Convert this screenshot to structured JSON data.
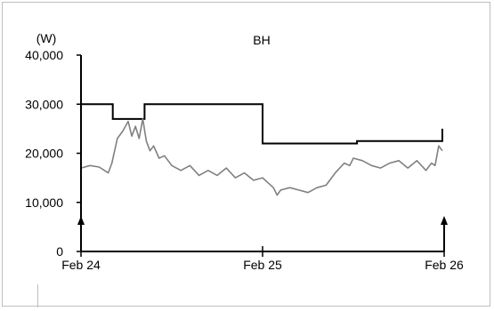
{
  "chart_data": {
    "type": "line",
    "title": "BH",
    "ylabel": "(W)",
    "xlabel": "",
    "ylim": [
      0,
      40000
    ],
    "yticks": [
      0,
      10000,
      20000,
      30000,
      40000
    ],
    "ytick_labels": [
      "0",
      "10,000",
      "20,000",
      "30,000",
      "40,000"
    ],
    "xlim": [
      0,
      2
    ],
    "xtick_labels": [
      "Feb 24",
      "Feb 25",
      "Feb 26"
    ],
    "xtick_positions": [
      0,
      1,
      2
    ],
    "grid": false,
    "legend": "none",
    "colors": {
      "step": "#000000",
      "noisy": "#808080",
      "axes": "#000000",
      "frame": "#bfbfbf"
    },
    "annotations": [
      {
        "type": "arrow-up",
        "x": 0
      },
      {
        "type": "arrow-up",
        "x": 2
      }
    ],
    "series": [
      {
        "style": "step",
        "x": [
          0,
          0.175,
          0.35,
          1.0,
          1.52,
          1.99,
          1.99
        ],
        "values": [
          30000,
          27000,
          30000,
          22000,
          22500,
          23000,
          25000
        ]
      },
      {
        "style": "noisy-line",
        "x": [
          0,
          0.05,
          0.1,
          0.15,
          0.17,
          0.2,
          0.23,
          0.26,
          0.28,
          0.3,
          0.32,
          0.34,
          0.36,
          0.38,
          0.4,
          0.43,
          0.46,
          0.5,
          0.55,
          0.6,
          0.65,
          0.7,
          0.75,
          0.8,
          0.85,
          0.9,
          0.95,
          1.0,
          1.03,
          1.06,
          1.08,
          1.1,
          1.15,
          1.2,
          1.25,
          1.3,
          1.35,
          1.4,
          1.45,
          1.48,
          1.5,
          1.55,
          1.6,
          1.65,
          1.7,
          1.75,
          1.8,
          1.85,
          1.9,
          1.93,
          1.95,
          1.97,
          1.99
        ],
        "values": [
          17000,
          17500,
          17200,
          16000,
          18000,
          23000,
          24500,
          26500,
          23500,
          25500,
          23000,
          27000,
          22500,
          20500,
          21500,
          19000,
          19500,
          17500,
          16500,
          17500,
          15500,
          16500,
          15500,
          17000,
          15000,
          16000,
          14500,
          15000,
          14000,
          13000,
          11500,
          12500,
          13000,
          12500,
          12000,
          13000,
          13500,
          16000,
          18000,
          17500,
          19000,
          18500,
          17500,
          17000,
          18000,
          18500,
          17000,
          18500,
          16500,
          18000,
          17500,
          21500,
          20500
        ]
      }
    ]
  }
}
